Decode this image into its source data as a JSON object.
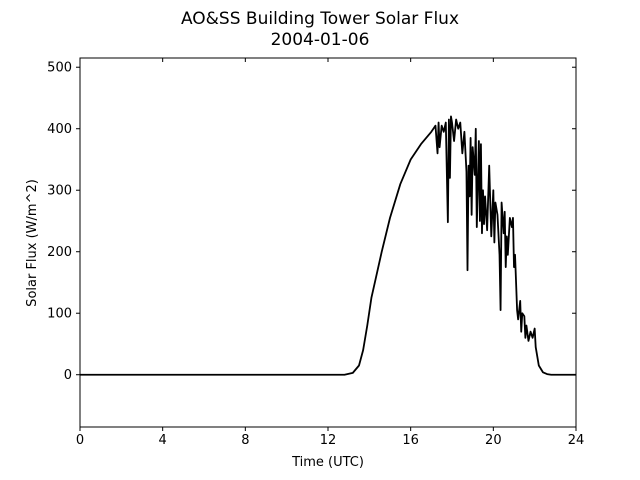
{
  "chart_data": {
    "type": "line",
    "title": "AO&SS Building Tower Solar Flux",
    "subtitle": "2004-01-06",
    "xlabel": "Time (UTC)",
    "ylabel": "Solar Flux (W/m^2)",
    "xlim": [
      0,
      24
    ],
    "ylim": [
      -85,
      515
    ],
    "xticks": [
      0,
      4,
      8,
      12,
      16,
      20,
      24
    ],
    "yticks": [
      0,
      100,
      200,
      300,
      400,
      500
    ],
    "grid": false,
    "line_color": "#000000",
    "series": [
      {
        "x": [
          0,
          12.8,
          13.2,
          13.5,
          13.7,
          13.9,
          14.1,
          14.3,
          14.6,
          15.0,
          15.5,
          16.0,
          16.5,
          17.0,
          17.2,
          17.3,
          17.35,
          17.4,
          17.5,
          17.6,
          17.7,
          17.8,
          17.85,
          17.9,
          17.95,
          18.0,
          18.1,
          18.2,
          18.3,
          18.4,
          18.5,
          18.6,
          18.7,
          18.75,
          18.8,
          18.85,
          18.9,
          18.95,
          19.0,
          19.1,
          19.15,
          19.2,
          19.3,
          19.35,
          19.4,
          19.45,
          19.5,
          19.55,
          19.6,
          19.7,
          19.8,
          19.9,
          20.0,
          20.05,
          20.1,
          20.2,
          20.3,
          20.35,
          20.4,
          20.5,
          20.55,
          20.6,
          20.65,
          20.7,
          20.8,
          20.9,
          20.95,
          21.0,
          21.05,
          21.1,
          21.15,
          21.2,
          21.3,
          21.35,
          21.4,
          21.5,
          21.55,
          21.6,
          21.7,
          21.8,
          21.9,
          22.0,
          22.05,
          22.1,
          22.2,
          22.4,
          22.6,
          22.8,
          23.0,
          24.0
        ],
        "y": [
          0,
          0,
          3,
          15,
          40,
          80,
          125,
          155,
          200,
          255,
          310,
          350,
          375,
          395,
          405,
          360,
          410,
          370,
          405,
          395,
          410,
          248,
          415,
          320,
          420,
          410,
          380,
          415,
          400,
          410,
          360,
          395,
          330,
          170,
          340,
          290,
          385,
          260,
          370,
          325,
          400,
          240,
          380,
          250,
          375,
          230,
          300,
          245,
          290,
          235,
          340,
          225,
          300,
          215,
          280,
          260,
          195,
          105,
          280,
          230,
          265,
          175,
          225,
          195,
          255,
          240,
          255,
          175,
          195,
          150,
          105,
          90,
          120,
          70,
          100,
          95,
          60,
          80,
          55,
          70,
          60,
          75,
          45,
          35,
          15,
          4,
          1,
          0,
          0,
          0
        ]
      }
    ]
  }
}
